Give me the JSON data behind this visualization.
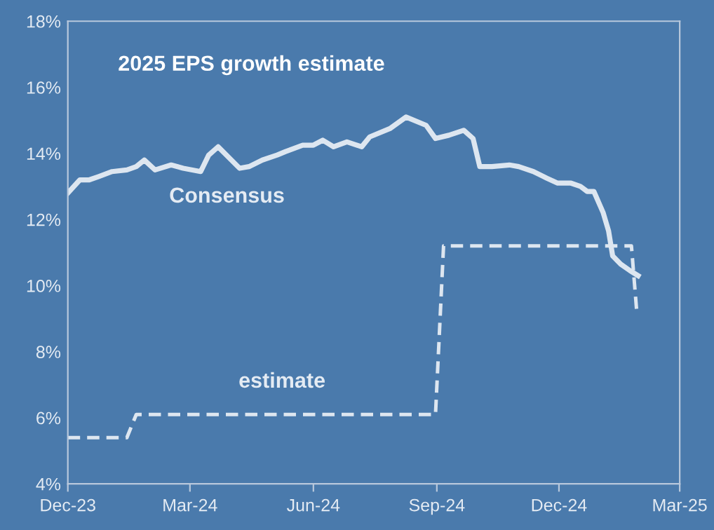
{
  "chart_data": {
    "type": "line",
    "title": "2025 EPS growth estimate",
    "xlim": [
      "2023-12-01",
      "2025-03-01"
    ],
    "xticks": [
      {
        "value": "2023-12-01",
        "label": "Dec-23"
      },
      {
        "value": "2024-03-01",
        "label": "Mar-24"
      },
      {
        "value": "2024-06-01",
        "label": "Jun-24"
      },
      {
        "value": "2024-09-01",
        "label": "Sep-24"
      },
      {
        "value": "2024-12-01",
        "label": "Dec-24"
      },
      {
        "value": "2025-03-01",
        "label": "Mar-25"
      }
    ],
    "ylim": [
      4,
      18
    ],
    "yticks": [
      {
        "value": 4,
        "label": "4%"
      },
      {
        "value": 6,
        "label": "6%"
      },
      {
        "value": 8,
        "label": "8%"
      },
      {
        "value": 10,
        "label": "10%"
      },
      {
        "value": 12,
        "label": "12%"
      },
      {
        "value": 14,
        "label": "14%"
      },
      {
        "value": 16,
        "label": "16%"
      },
      {
        "value": 18,
        "label": "18%"
      }
    ],
    "grid": false,
    "legend": false,
    "series": [
      {
        "name": "Consensus",
        "color": "#dde6f0",
        "line_style": "solid",
        "x": [
          "2023-12-01",
          "2023-12-10",
          "2023-12-17",
          "2023-12-24",
          "2024-01-03",
          "2024-01-14",
          "2024-01-21",
          "2024-01-27",
          "2024-02-04",
          "2024-02-16",
          "2024-02-25",
          "2024-03-09",
          "2024-03-15",
          "2024-03-22",
          "2024-04-07",
          "2024-04-14",
          "2024-04-24",
          "2024-05-05",
          "2024-05-11",
          "2024-05-24",
          "2024-06-01",
          "2024-06-08",
          "2024-06-16",
          "2024-06-26",
          "2024-07-07",
          "2024-07-13",
          "2024-07-28",
          "2024-08-09",
          "2024-08-24",
          "2024-08-31",
          "2024-09-10",
          "2024-09-21",
          "2024-09-28",
          "2024-10-03",
          "2024-10-12",
          "2024-10-25",
          "2024-11-01",
          "2024-11-12",
          "2024-11-22",
          "2024-11-30",
          "2024-12-10",
          "2024-12-17",
          "2024-12-22",
          "2024-12-27",
          "2025-01-03",
          "2025-01-07",
          "2025-01-10",
          "2025-01-16",
          "2025-01-23",
          "2025-01-29"
        ],
        "values": [
          12.8,
          13.2,
          13.2,
          13.3,
          13.45,
          13.5,
          13.6,
          13.8,
          13.5,
          13.65,
          13.55,
          13.45,
          13.95,
          14.2,
          13.55,
          13.6,
          13.8,
          13.95,
          14.05,
          14.25,
          14.25,
          14.4,
          14.2,
          14.35,
          14.2,
          14.5,
          14.75,
          15.1,
          14.85,
          14.45,
          14.55,
          14.7,
          14.45,
          13.6,
          13.6,
          13.65,
          13.6,
          13.45,
          13.25,
          13.1,
          13.1,
          13.0,
          12.85,
          12.85,
          12.2,
          11.65,
          10.9,
          10.65,
          10.45,
          10.3
        ]
      },
      {
        "name": "estimate",
        "color": "#dde6f0",
        "line_style": "dashed",
        "x": [
          "2023-12-01",
          "2024-01-14",
          "2024-01-21",
          "2024-08-31",
          "2024-09-06",
          "2025-01-24",
          "2025-01-28"
        ],
        "values": [
          5.4,
          5.4,
          6.1,
          6.1,
          11.2,
          11.2,
          9.2
        ]
      }
    ]
  }
}
